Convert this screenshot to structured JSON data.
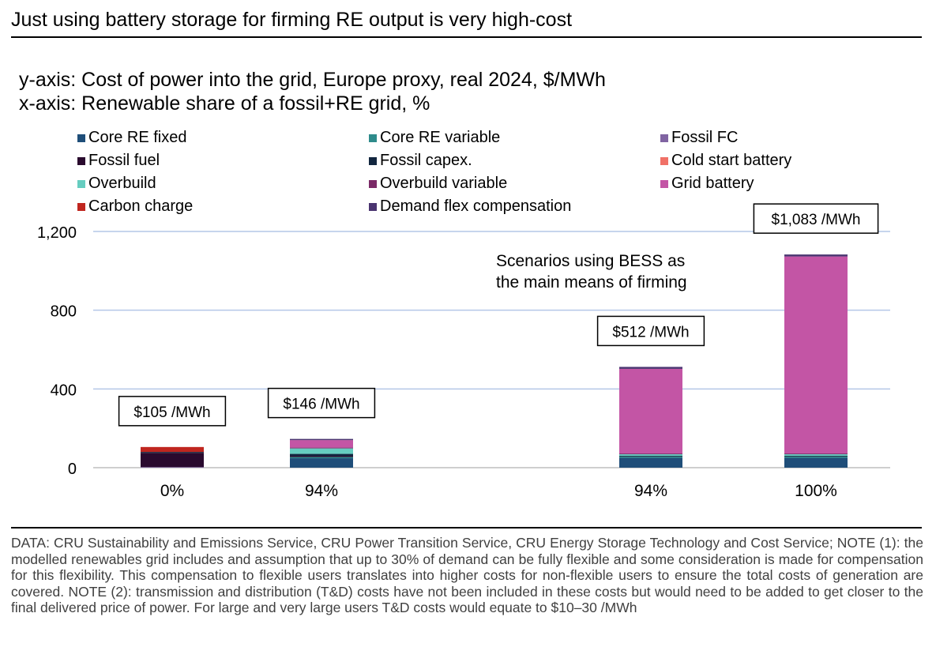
{
  "title": "Just using battery storage for firming RE output is very high-cost",
  "subtitle_y": "y-axis: Cost of power into the grid, Europe proxy, real 2024, $/MWh",
  "subtitle_x": "x-axis: Renewable share of a fossil+RE grid, %",
  "footer": "DATA: CRU Sustainability and Emissions Service, CRU Power Transition Service, CRU  Energy Storage Technology and Cost Service; NOTE (1): the modelled renewables grid includes and assumption that up to 30% of demand can be fully flexible and some consideration is made for compensation for this flexibility. This compensation to flexible users translates into higher costs for non-flexible users to ensure the total costs of generation are covered. NOTE (2): transmission and distribution (T&D) costs have not been included in these costs but would need to be added to get closer to the final delivered price of power. For large and very large users T&D costs would equate to $10–30 /MWh",
  "chart_data": {
    "type": "bar",
    "stacked": true,
    "categories": [
      "0%",
      "94%",
      "94%",
      "100%"
    ],
    "ylim": [
      0,
      1200
    ],
    "yticks": [
      0,
      400,
      800,
      1200
    ],
    "ytick_labels": [
      "0",
      "400",
      "800",
      "1,200"
    ],
    "grid": true,
    "legend_position": "top",
    "annotation": {
      "text_line1": "Scenarios using BESS as",
      "text_line2": "the main means of firming"
    },
    "total_labels": [
      "$105 /MWh",
      "$146 /MWh",
      "$512 /MWh",
      "$1,083 /MWh"
    ],
    "series": [
      {
        "name": "Core RE fixed",
        "color": "#1f4e79",
        "values": [
          0,
          48,
          50,
          50
        ]
      },
      {
        "name": "Core RE variable",
        "color": "#2e8b8b",
        "values": [
          0,
          6,
          6,
          6
        ]
      },
      {
        "name": "Fossil FC",
        "color": "#8064a2",
        "values": [
          3,
          0,
          0,
          0
        ]
      },
      {
        "name": "Fossil fuel",
        "color": "#2a0a2e",
        "values": [
          72,
          6,
          0,
          0
        ]
      },
      {
        "name": "Fossil capex.",
        "color": "#12263f",
        "values": [
          5,
          10,
          4,
          4
        ]
      },
      {
        "name": "Cold start battery",
        "color": "#f07167",
        "values": [
          0,
          0,
          0,
          0
        ]
      },
      {
        "name": "Overbuild",
        "color": "#66cdc0",
        "values": [
          0,
          28,
          8,
          8
        ]
      },
      {
        "name": "Overbuild variable",
        "color": "#7b2a67",
        "values": [
          0,
          4,
          4,
          4
        ]
      },
      {
        "name": "Grid battery",
        "color": "#c355a5",
        "values": [
          0,
          38,
          430,
          1001
        ]
      },
      {
        "name": "Carbon charge",
        "color": "#c0261f",
        "values": [
          25,
          0,
          0,
          0
        ]
      },
      {
        "name": "Demand flex compensation",
        "color": "#4a3470",
        "values": [
          0,
          6,
          10,
          10
        ]
      }
    ]
  }
}
